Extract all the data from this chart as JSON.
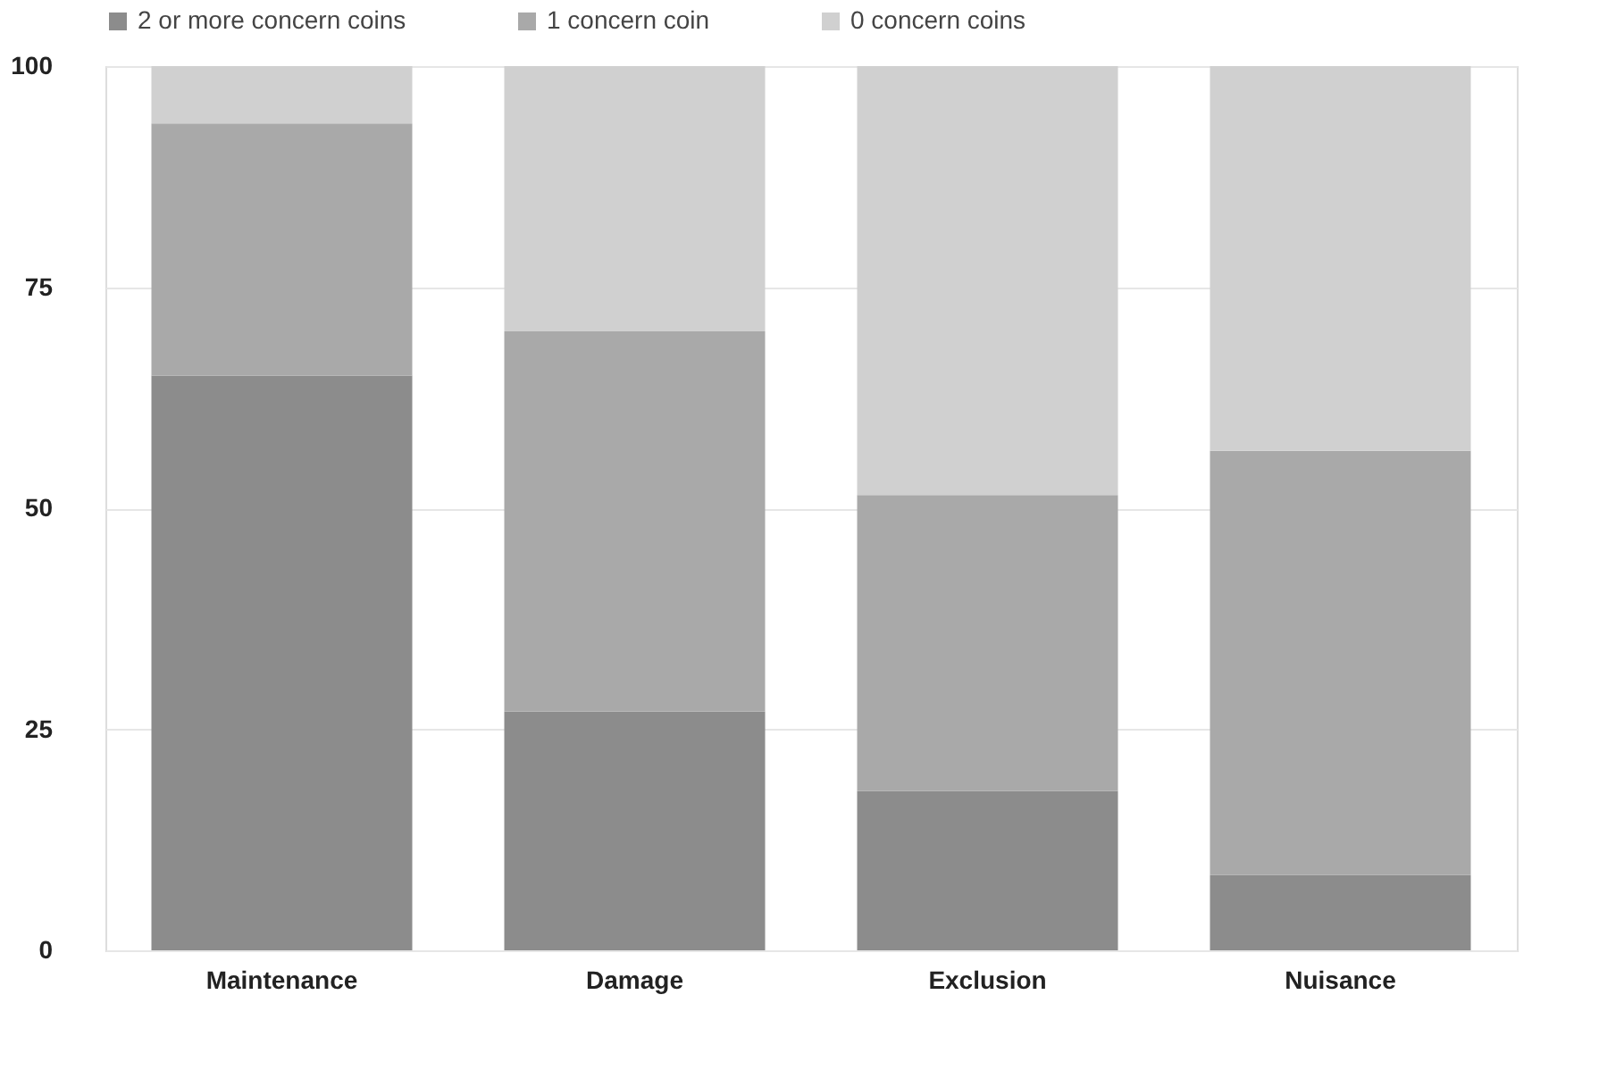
{
  "chart_data": {
    "type": "bar",
    "stacked": true,
    "categories": [
      "Maintenance",
      "Damage",
      "Exclusion",
      "Nuisance"
    ],
    "series": [
      {
        "name": "2 or more concern coins",
        "color": "#8c8c8c",
        "values": [
          65,
          27,
          18,
          8.5
        ]
      },
      {
        "name": "1 concern coin",
        "color": "#a9a9a9",
        "values": [
          28.5,
          43,
          33.5,
          48
        ]
      },
      {
        "name": "0 concern coins",
        "color": "#d0d0d0",
        "values": [
          6.5,
          30,
          48.5,
          43.5
        ]
      }
    ],
    "ylim": [
      0,
      100
    ],
    "yticks": [
      0,
      25,
      50,
      75,
      100
    ],
    "grid": "y",
    "legend": "top"
  }
}
